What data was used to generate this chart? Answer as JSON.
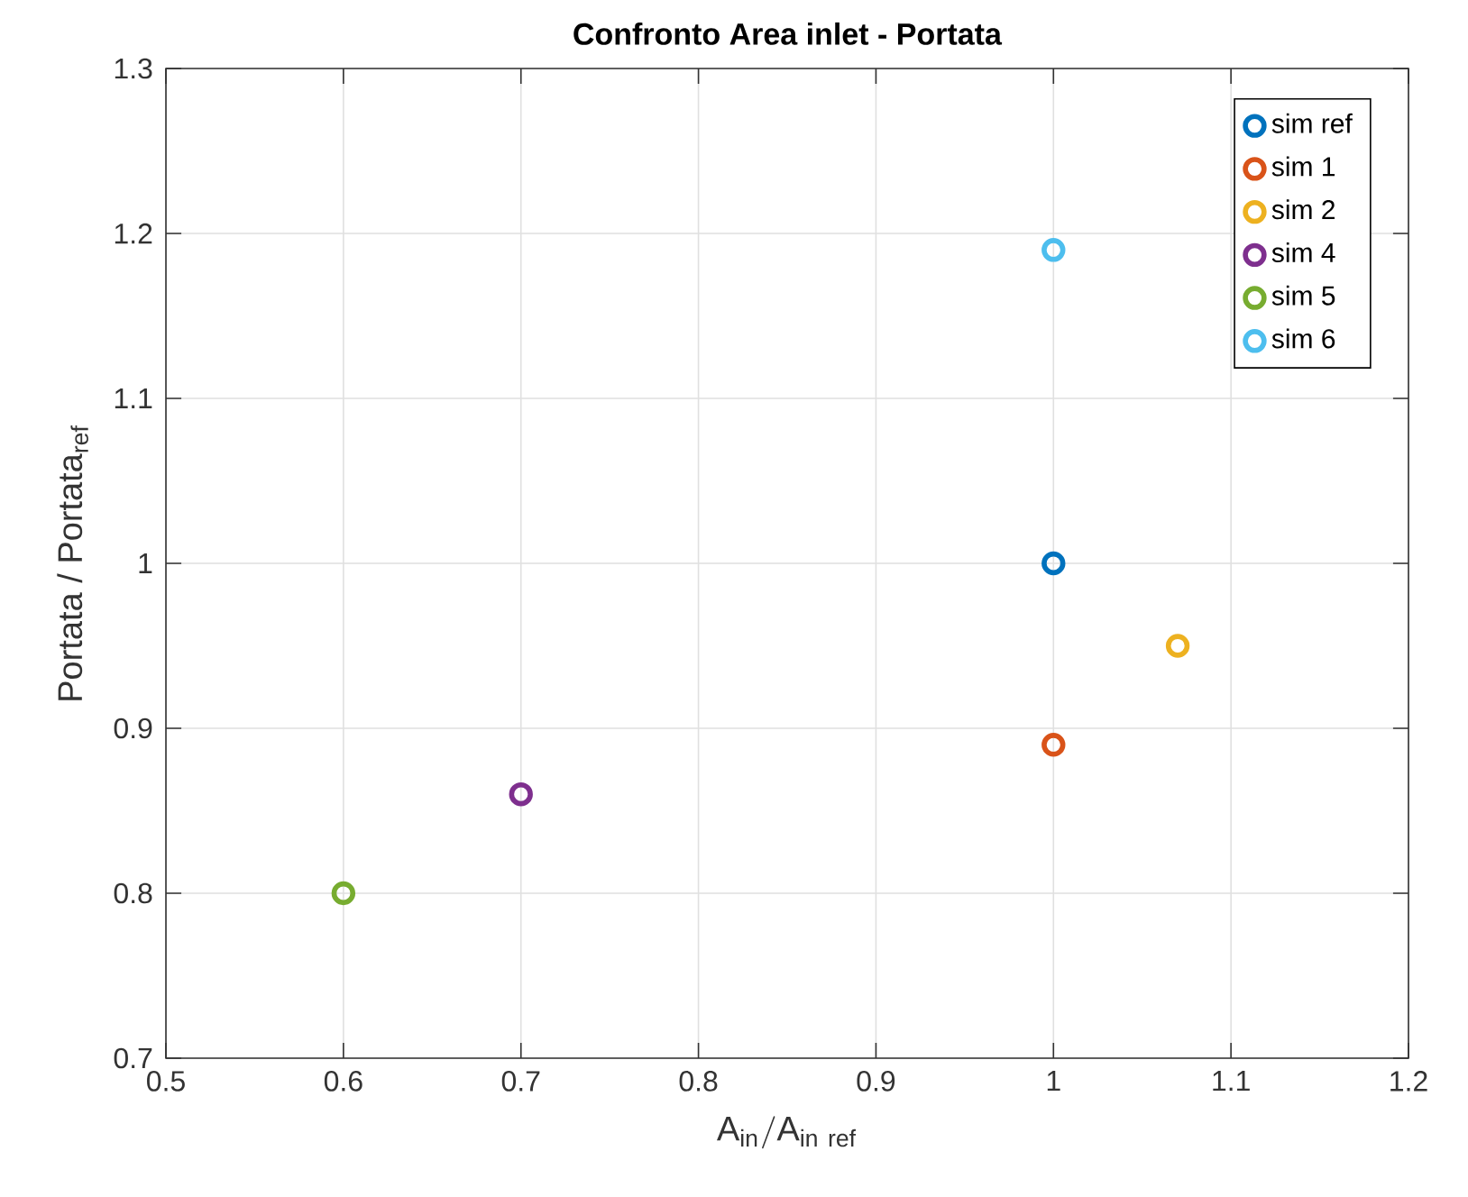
{
  "chart_data": {
    "type": "scatter",
    "title": "**Confronto Area inlet - Portata**",
    "xlabel": "\\mathrm{A_{in} / A_{in\\ ref}}",
    "ylabel": "Portata / Portata$_{ref}$",
    "xlim": [
      0.5,
      1.2
    ],
    "xticks": [
      0.5,
      0.6,
      0.7,
      0.8,
      0.9,
      1,
      1.1,
      1.2
    ],
    "ylim": [
      0.7,
      1.3
    ],
    "yticks": [
      0.7,
      0.8,
      0.9,
      1,
      1.1,
      1.2,
      1.3
    ],
    "grid": true,
    "legend": "top right",
    "marker": "circle",
    "series": [
      {
        "name": "sim ref",
        "color": "#0072bd",
        "x": [
          1
        ],
        "values": [
          1.0
        ]
      },
      {
        "name": "sim 1",
        "color": "#d95319",
        "x": [
          1
        ],
        "values": [
          0.89
        ]
      },
      {
        "name": "sim 2",
        "color": "#edb120",
        "x": [
          1.07
        ],
        "values": [
          0.95
        ]
      },
      {
        "name": "sim 4",
        "color": "#7e2f8e",
        "x": [
          0.7
        ],
        "values": [
          0.86
        ]
      },
      {
        "name": "sim 5",
        "color": "#77ac30",
        "x": [
          0.6
        ],
        "values": [
          0.8
        ]
      },
      {
        "name": "sim 6",
        "color": "#4dbeee",
        "x": [
          1
        ],
        "values": [
          1.19
        ]
      }
    ]
  }
}
